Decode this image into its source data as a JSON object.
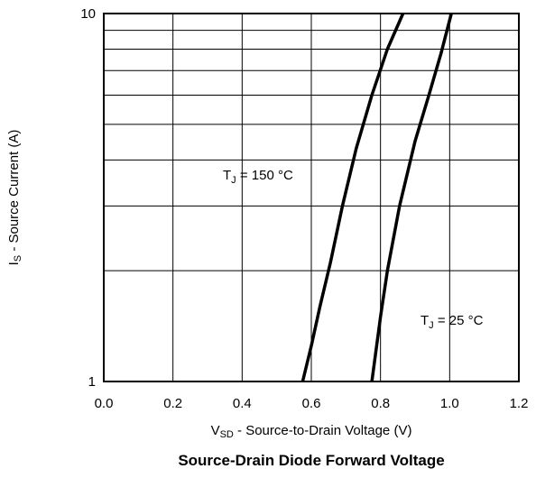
{
  "chart_data": {
    "type": "line",
    "title": "Source-Drain Diode Forward Voltage",
    "xlabel": {
      "symbol": "V",
      "subscript": "SD",
      "text": " - Source-to-Drain Voltage (V)"
    },
    "ylabel": {
      "symbol": "I",
      "subscript": "S",
      "text": " - Source Current (A)"
    },
    "xlim": [
      0.0,
      1.2
    ],
    "ylim": [
      1,
      10
    ],
    "yscale": "log",
    "grid": true,
    "x_ticks": [
      "0.0",
      "0.2",
      "0.4",
      "0.6",
      "0.8",
      "1.0",
      "1.2"
    ],
    "x_tick_values": [
      0.0,
      0.2,
      0.4,
      0.6,
      0.8,
      1.0,
      1.2
    ],
    "y_ticks": [
      "1",
      "10"
    ],
    "y_tick_values": [
      1,
      10
    ],
    "y_minor_ticks": [
      2,
      3,
      4,
      5,
      6,
      7,
      8,
      9
    ],
    "series": [
      {
        "name": "T_J = 150 °C",
        "annotation": {
          "symbol": "T",
          "subscript": "J",
          "text": " = 150 °C"
        },
        "x": [
          0.575,
          0.6,
          0.625,
          0.655,
          0.69,
          0.73,
          0.775,
          0.82,
          0.865
        ],
        "y": [
          1.0,
          1.25,
          1.6,
          2.1,
          3.0,
          4.3,
          6.0,
          8.0,
          10.0
        ]
      },
      {
        "name": "T_J = 25 °C",
        "annotation": {
          "symbol": "T",
          "subscript": "J",
          "text": " = 25 °C"
        },
        "x": [
          0.775,
          0.8,
          0.82,
          0.855,
          0.9,
          0.94,
          0.975,
          1.005
        ],
        "y": [
          1.0,
          1.5,
          2.0,
          3.0,
          4.5,
          6.0,
          7.8,
          10.0
        ]
      }
    ],
    "colors": {
      "line": "#000000",
      "grid": "#000000",
      "background": "#ffffff"
    }
  }
}
